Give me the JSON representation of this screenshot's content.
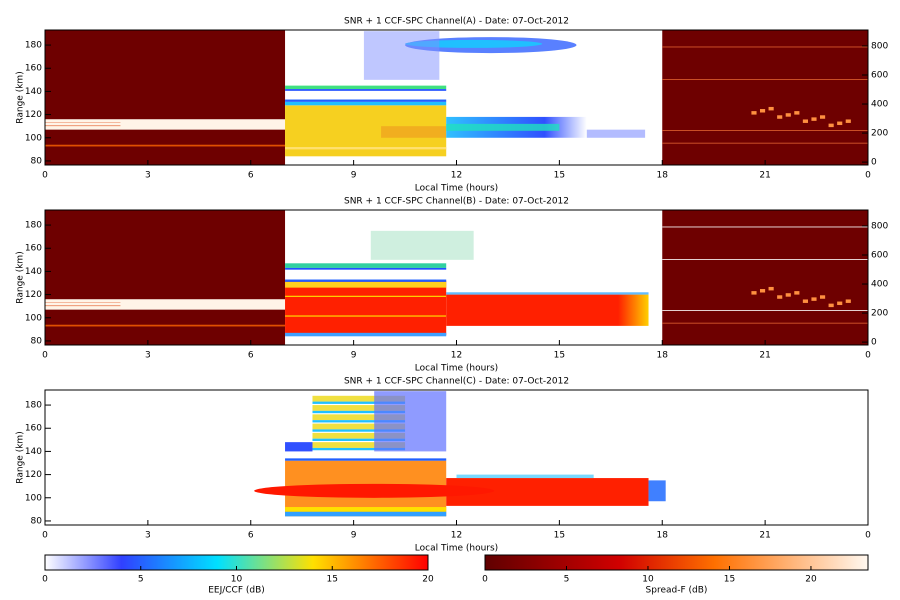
{
  "panels": [
    {
      "title": "SNR + 1 CCF-SPC Channel(A) - Date: 07-Oct-2012",
      "ylabel": "Range (km)",
      "xlabel": "Local Time (hours)",
      "xlim": [
        0,
        24
      ],
      "xticks": [
        0,
        3,
        6,
        9,
        12,
        15,
        18,
        21,
        {
          "value": 24,
          "label": "0"
        }
      ],
      "ylim": [
        76.5,
        193
      ],
      "yticks": [
        80,
        100,
        120,
        140,
        160,
        180
      ],
      "y2lim": [
        -20,
        910
      ],
      "y2ticks": [
        0,
        200,
        400,
        600,
        800
      ]
    },
    {
      "title": "SNR + 1 CCF-SPC Channel(B) - Date: 07-Oct-2012",
      "ylabel": "Range (km)",
      "xlabel": "Local Time (hours)",
      "xlim": [
        0,
        24
      ],
      "xticks": [
        0,
        3,
        6,
        9,
        12,
        15,
        18,
        21,
        {
          "value": 24,
          "label": "0"
        }
      ],
      "ylim": [
        76.5,
        193
      ],
      "yticks": [
        80,
        100,
        120,
        140,
        160,
        180
      ],
      "y2lim": [
        -20,
        910
      ],
      "y2ticks": [
        0,
        200,
        400,
        600,
        800
      ]
    },
    {
      "title": "SNR + 1 CCF-SPC Channel(C) - Date: 07-Oct-2012",
      "ylabel": "Range (km)",
      "xlabel": "Local Time (hours)",
      "xlim": [
        0,
        24
      ],
      "xticks": [
        0,
        3,
        6,
        9,
        12,
        15,
        18,
        21,
        {
          "value": 24,
          "label": "0"
        }
      ],
      "ylim": [
        76.5,
        193
      ],
      "yticks": [
        80,
        100,
        120,
        140,
        160,
        180
      ]
    }
  ],
  "colorbars": [
    {
      "label": "EEJ/CCF (dB)",
      "lim": [
        0,
        20
      ],
      "ticks": [
        0,
        5,
        10,
        15,
        20
      ]
    },
    {
      "label": "Spread-F (dB)",
      "lim": [
        0,
        23.5
      ],
      "ticks": [
        0,
        5,
        10,
        15,
        20
      ]
    }
  ]
}
